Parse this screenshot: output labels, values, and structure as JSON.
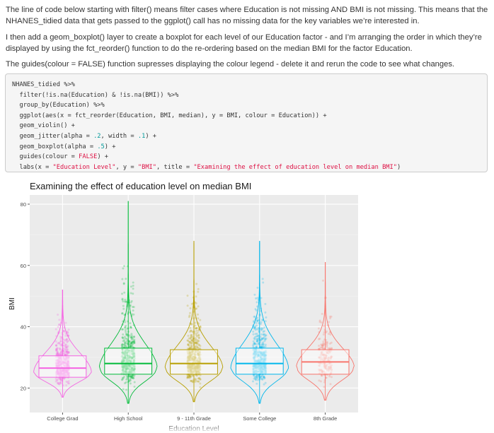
{
  "paragraphs": {
    "p1": "The line of code below starting with filter() means filter cases where Education is not missing AND BMI is not missing. This means that the NHANES_tidied data that gets passed to the ggplot() call has no missing data for the key variables we’re interested in.",
    "p2": "I then add a geom_boxplot() layer to create a boxplot for each level of our Education factor - and I’m arranging the order in which they’re displayed by using the fct_reorder() function to do the re-ordering based on the median BMI for the factor Education.",
    "p3": "The guides(colour = FALSE) function supresses displaying the colour legend - delete it and rerun the code to see what changes."
  },
  "code": {
    "l1": "NHANES_tidied %>%",
    "l2": "  filter(!is.na(Education) & !is.na(BMI)) %>%",
    "l3": "  group_by(Education) %>%",
    "l4": "  ggplot(aes(x = fct_reorder(Education, BMI, median), y = BMI, colour = Education)) +",
    "l5": "  geom_violin() +",
    "l6a": "  geom_jitter(alpha = ",
    "l6n1": ".2",
    "l6b": ", width = ",
    "l6n2": ".1",
    "l6c": ") +",
    "l7a": "  geom_boxplot(alpha = ",
    "l7n": ".5",
    "l7c": ") +",
    "l8a": "  guides(colour = ",
    "l8s": "FALSE",
    "l8c": ") +",
    "l9a": "  labs(x = ",
    "l9s1": "\"Education Level\"",
    "l9b": ", y = ",
    "l9s2": "\"BMI\"",
    "l9c": ", title = ",
    "l9s3": "\"Examining the effect of education level on median BMI\"",
    "l9d": ")"
  },
  "chart_data": {
    "type": "violin+boxplot+jitter",
    "title": "Examining the effect of education level on median BMI",
    "xlabel": "Education Level",
    "ylabel": "BMI",
    "ylim": [
      12,
      83
    ],
    "yticks": [
      20,
      40,
      60,
      80
    ],
    "grid": true,
    "categories": [
      "College Grad",
      "High School",
      "9 - 11th Grade",
      "Some College",
      "8th Grade"
    ],
    "colors": [
      "#F564E3",
      "#00BA38",
      "#B79F00",
      "#00B6EB",
      "#F8766D"
    ],
    "boxes": [
      {
        "q1": 23.5,
        "median": 26.5,
        "q3": 30.5,
        "min": 17,
        "max": 52
      },
      {
        "q1": 24.5,
        "median": 28,
        "q3": 33,
        "min": 15,
        "max": 81
      },
      {
        "q1": 24.5,
        "median": 28,
        "q3": 32.5,
        "min": 15.5,
        "max": 68
      },
      {
        "q1": 24.5,
        "median": 28,
        "q3": 33,
        "min": 15,
        "max": 68
      },
      {
        "q1": 24.5,
        "median": 28.5,
        "q3": 32.5,
        "min": 16,
        "max": 61
      }
    ]
  }
}
